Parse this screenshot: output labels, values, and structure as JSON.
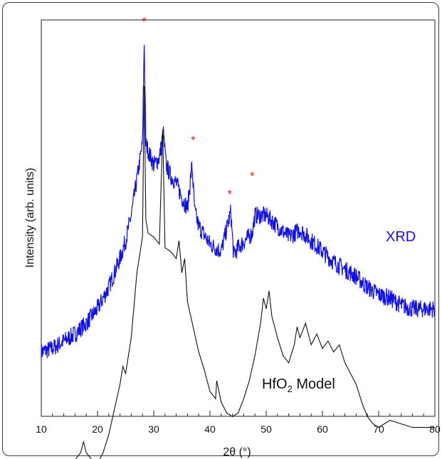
{
  "chart_data": {
    "type": "line",
    "title": "",
    "xlabel": "2θ (°)",
    "ylabel": "Intensity (arb. units)",
    "xlim": [
      10,
      80
    ],
    "x_ticks": [
      10,
      20,
      30,
      40,
      50,
      60,
      70,
      80
    ],
    "x_tick_labels": [
      "10",
      "20",
      "30",
      "40",
      "50",
      "60",
      "70",
      "80"
    ],
    "y_ticks_shown": false,
    "grid": false,
    "colors": {
      "xrd": "#1010ee",
      "model": "#111111",
      "marker": "#ee2222"
    },
    "series": [
      {
        "name": "XRD",
        "label": "XRD",
        "x": [
          10,
          12,
          14,
          16,
          18,
          20,
          22,
          24,
          25,
          26,
          27,
          28,
          28.3,
          28.6,
          29,
          30,
          31,
          31.7,
          32.2,
          33,
          34,
          35,
          36,
          36.8,
          37.3,
          38,
          40,
          42,
          43.7,
          44.2,
          45,
          47.5,
          48,
          50,
          52,
          54,
          56,
          58,
          60,
          62,
          64,
          66,
          68,
          70,
          72,
          74,
          76,
          78,
          80
        ],
        "y": [
          8,
          9,
          11,
          13,
          16,
          20,
          26,
          34,
          39,
          46,
          56,
          66,
          95,
          66,
          64,
          60,
          62,
          69,
          60,
          57,
          55,
          51,
          48,
          60,
          47,
          43,
          38,
          36,
          47,
          35,
          37,
          41,
          46,
          46,
          43,
          40,
          42,
          39,
          36,
          33,
          31,
          29,
          26,
          24,
          23,
          21,
          20,
          20,
          20
        ]
      },
      {
        "name": "HfO2 Model",
        "label_main": "HfO",
        "label_sub": "2",
        "label_rest": " Model",
        "x": [
          10,
          14,
          16,
          17,
          17.5,
          18,
          19,
          20,
          21,
          22,
          23,
          24,
          24.5,
          25,
          26,
          27,
          28,
          28.3,
          28.6,
          29,
          30,
          31,
          31.6,
          32,
          33,
          34,
          34.5,
          35,
          35.5,
          36,
          37,
          38,
          39,
          40,
          41,
          41.2,
          42,
          43,
          44,
          45,
          46,
          47,
          48,
          49,
          49.5,
          50,
          50.5,
          51,
          52,
          53,
          54,
          55,
          55.5,
          56,
          57,
          58,
          59,
          60,
          61,
          62,
          63,
          64,
          65,
          66,
          67,
          68,
          69,
          70,
          71,
          72,
          74,
          76,
          78,
          80
        ],
        "y": [
          -24,
          -24,
          -22,
          -20,
          -17,
          -20,
          -22,
          -23,
          -20,
          -15,
          -8,
          -1,
          4,
          2,
          12,
          30,
          40,
          82,
          45,
          41,
          40,
          38,
          70,
          37,
          36,
          34,
          39,
          30,
          34,
          22,
          15,
          8,
          3,
          -3,
          -5,
          0,
          -6,
          -9,
          -10,
          -9,
          -5,
          0,
          7,
          16,
          23,
          20,
          25,
          18,
          12,
          7,
          5,
          10,
          15,
          12,
          16,
          10,
          13,
          9,
          11,
          8,
          10,
          5,
          2,
          -1,
          -6,
          -10,
          -12,
          -13,
          -12,
          -11,
          -12,
          -13,
          -13,
          -13
        ]
      }
    ],
    "annotations": [
      {
        "text": "*",
        "x": 28.3,
        "y": 100
      },
      {
        "text": "*",
        "x": 37.0,
        "y": 67
      },
      {
        "text": "*",
        "x": 43.5,
        "y": 52
      },
      {
        "text": "*",
        "x": 47.5,
        "y": 57
      }
    ]
  }
}
